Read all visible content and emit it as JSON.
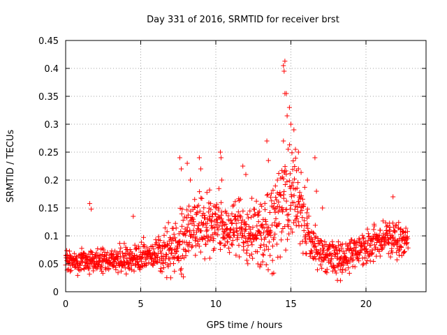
{
  "chart_data": {
    "type": "scatter",
    "title": "Day 331 of 2016, SRMTID for receiver brst",
    "xlabel": "GPS time / hours",
    "ylabel": "SRMTID / TECUs",
    "xlim": [
      0,
      24
    ],
    "ylim": [
      0,
      0.45
    ],
    "x_ticks": [
      0,
      5,
      10,
      15,
      20
    ],
    "x_tick_labels": [
      "0",
      "5",
      "10",
      "15",
      "20"
    ],
    "y_ticks": [
      0,
      0.05,
      0.1,
      0.15,
      0.2,
      0.25,
      0.3,
      0.35,
      0.4,
      0.45
    ],
    "y_tick_labels": [
      "0",
      "0.05",
      "0.1",
      "0.15",
      "0.2",
      "0.25",
      "0.3",
      "0.35",
      "0.4",
      "0.45"
    ],
    "grid": true,
    "marker": "+",
    "color": "#ff0000",
    "x_range_of_data": [
      0,
      22.8
    ],
    "x_step_hours": 0.016,
    "trend_points": [
      [
        0,
        0.055
      ],
      [
        2,
        0.055
      ],
      [
        4,
        0.06
      ],
      [
        5.5,
        0.065
      ],
      [
        6.5,
        0.07
      ],
      [
        7.5,
        0.085
      ],
      [
        8.5,
        0.12
      ],
      [
        9.5,
        0.12
      ],
      [
        10.5,
        0.11
      ],
      [
        11.5,
        0.115
      ],
      [
        12.5,
        0.1
      ],
      [
        13.5,
        0.11
      ],
      [
        14.3,
        0.14
      ],
      [
        14.8,
        0.175
      ],
      [
        15.5,
        0.155
      ],
      [
        16,
        0.11
      ],
      [
        16.5,
        0.08
      ],
      [
        17.5,
        0.065
      ],
      [
        18.5,
        0.06
      ],
      [
        19.5,
        0.075
      ],
      [
        20.5,
        0.085
      ],
      [
        21.5,
        0.095
      ],
      [
        22.8,
        0.09
      ]
    ],
    "spread_points": [
      [
        0,
        0.012
      ],
      [
        6,
        0.016
      ],
      [
        7.5,
        0.035
      ],
      [
        9,
        0.035
      ],
      [
        12,
        0.03
      ],
      [
        14,
        0.045
      ],
      [
        15,
        0.06
      ],
      [
        16,
        0.035
      ],
      [
        17,
        0.02
      ],
      [
        19,
        0.018
      ],
      [
        22.8,
        0.02
      ]
    ],
    "outliers": [
      [
        7.6,
        0.24
      ],
      [
        7.7,
        0.22
      ],
      [
        8.1,
        0.23
      ],
      [
        8.3,
        0.2
      ],
      [
        8.9,
        0.24
      ],
      [
        9.0,
        0.22
      ],
      [
        10.3,
        0.25
      ],
      [
        10.35,
        0.24
      ],
      [
        10.4,
        0.2
      ],
      [
        11.8,
        0.225
      ],
      [
        12.0,
        0.21
      ],
      [
        13.4,
        0.27
      ],
      [
        13.5,
        0.235
      ],
      [
        14.1,
        0.2
      ],
      [
        14.5,
        0.405
      ],
      [
        14.6,
        0.413
      ],
      [
        14.55,
        0.395
      ],
      [
        14.6,
        0.355
      ],
      [
        14.7,
        0.355
      ],
      [
        14.75,
        0.315
      ],
      [
        14.9,
        0.33
      ],
      [
        15.0,
        0.3
      ],
      [
        14.5,
        0.27
      ],
      [
        15.2,
        0.29
      ],
      [
        15.3,
        0.255
      ],
      [
        15.5,
        0.25
      ],
      [
        15.5,
        0.22
      ],
      [
        16.1,
        0.2
      ],
      [
        16.6,
        0.24
      ],
      [
        16.7,
        0.18
      ],
      [
        17.1,
        0.15
      ],
      [
        21.8,
        0.17
      ],
      [
        1.6,
        0.158
      ],
      [
        1.7,
        0.148
      ],
      [
        18.3,
        0.02
      ],
      [
        4.5,
        0.135
      ],
      [
        12.8,
        0.05
      ],
      [
        13.0,
        0.048
      ],
      [
        7.0,
        0.025
      ],
      [
        9.6,
        0.06
      ]
    ],
    "seed": 331
  }
}
